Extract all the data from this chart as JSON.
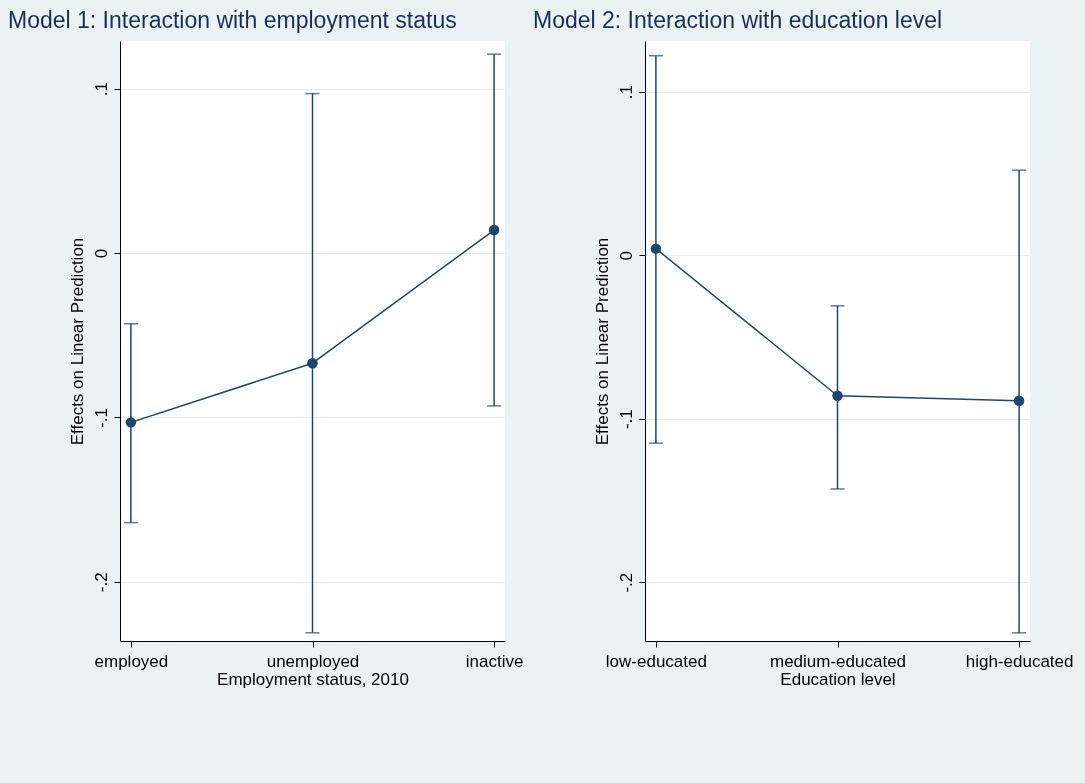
{
  "chart_data": [
    {
      "type": "line",
      "title": "Model 1: Interaction with employment status",
      "xlabel": "Employment status, 2010",
      "ylabel": "Effects on Linear Prediction",
      "categories": [
        "employed",
        "unemployed",
        "inactive"
      ],
      "series": [
        {
          "color": "#1a476f",
          "values": [
            -0.103,
            -0.067,
            0.014
          ],
          "errors": [
            [
              -0.164,
              -0.043
            ],
            [
              -0.231,
              0.097
            ],
            [
              -0.093,
              0.121
            ]
          ]
        }
      ],
      "ylim": [
        -0.236,
        0.129
      ],
      "yticks": [
        {
          "value": -0.2,
          "label": "-.2"
        },
        {
          "value": -0.1,
          "label": "-.1"
        },
        {
          "value": 0,
          "label": "0"
        },
        {
          "value": 0.1,
          "label": ".1"
        }
      ],
      "grid": "y",
      "marker": "circle",
      "line_style": "solid"
    },
    {
      "type": "line",
      "title": "Model 2: Interaction with education level",
      "xlabel": "Education level",
      "ylabel": "Effects on Linear Prediction",
      "categories": [
        "low-educated",
        "medium-educated",
        "high-educated"
      ],
      "series": [
        {
          "color": "#1a476f",
          "values": [
            0.004,
            -0.086,
            -0.089
          ],
          "errors": [
            [
              -0.115,
              0.122
            ],
            [
              -0.143,
              -0.031
            ],
            [
              -0.231,
              0.052
            ]
          ]
        }
      ],
      "ylim": [
        -0.236,
        0.131
      ],
      "yticks": [
        {
          "value": -0.2,
          "label": "-.2"
        },
        {
          "value": -0.1,
          "label": "-.1"
        },
        {
          "value": 0,
          "label": "0"
        },
        {
          "value": 0.1,
          "label": ".1"
        }
      ],
      "grid": "y",
      "marker": "circle",
      "line_style": "solid"
    }
  ]
}
